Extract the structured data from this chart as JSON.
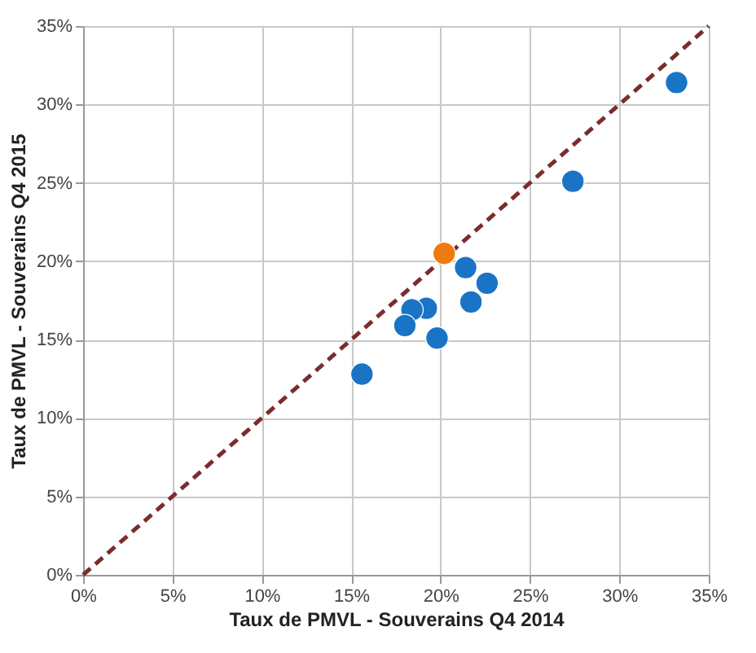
{
  "chart_data": {
    "type": "scatter",
    "xlabel": "Taux de PMVL -  Souverains Q4 2014",
    "ylabel": "Taux de PMVL -  Souverains Q4 2015",
    "xlim": [
      0,
      0.35
    ],
    "ylim": [
      0,
      0.35
    ],
    "xticks": [
      {
        "value": 0,
        "label": "0%"
      },
      {
        "value": 0.05,
        "label": "5%"
      },
      {
        "value": 0.1,
        "label": "10%"
      },
      {
        "value": 0.15,
        "label": "15%"
      },
      {
        "value": 0.2,
        "label": "20%"
      },
      {
        "value": 0.25,
        "label": "25%"
      },
      {
        "value": 0.3,
        "label": "30%"
      },
      {
        "value": 0.35,
        "label": "35%"
      }
    ],
    "yticks": [
      {
        "value": 0,
        "label": "0%"
      },
      {
        "value": 0.05,
        "label": "5%"
      },
      {
        "value": 0.1,
        "label": "10%"
      },
      {
        "value": 0.15,
        "label": "15%"
      },
      {
        "value": 0.2,
        "label": "20%"
      },
      {
        "value": 0.25,
        "label": "25%"
      },
      {
        "value": 0.3,
        "label": "30%"
      },
      {
        "value": 0.35,
        "label": "35%"
      }
    ],
    "grid": true,
    "marker": "circle",
    "series": [
      {
        "type": "line",
        "color": "#7b2d2d",
        "line_style": "dashed",
        "marker": "none",
        "x": [
          0,
          0.35
        ],
        "values": [
          0,
          0.35
        ]
      },
      {
        "color": "#1a74c6",
        "x": [
          0.332,
          0.274,
          0.214,
          0.226,
          0.217,
          0.192,
          0.184,
          0.18,
          0.198,
          0.156
        ],
        "values": [
          0.314,
          0.251,
          0.196,
          0.186,
          0.174,
          0.17,
          0.169,
          0.159,
          0.151,
          0.128
        ]
      },
      {
        "color": "#f07a10",
        "x": [
          0.202
        ],
        "values": [
          0.205
        ]
      }
    ]
  }
}
